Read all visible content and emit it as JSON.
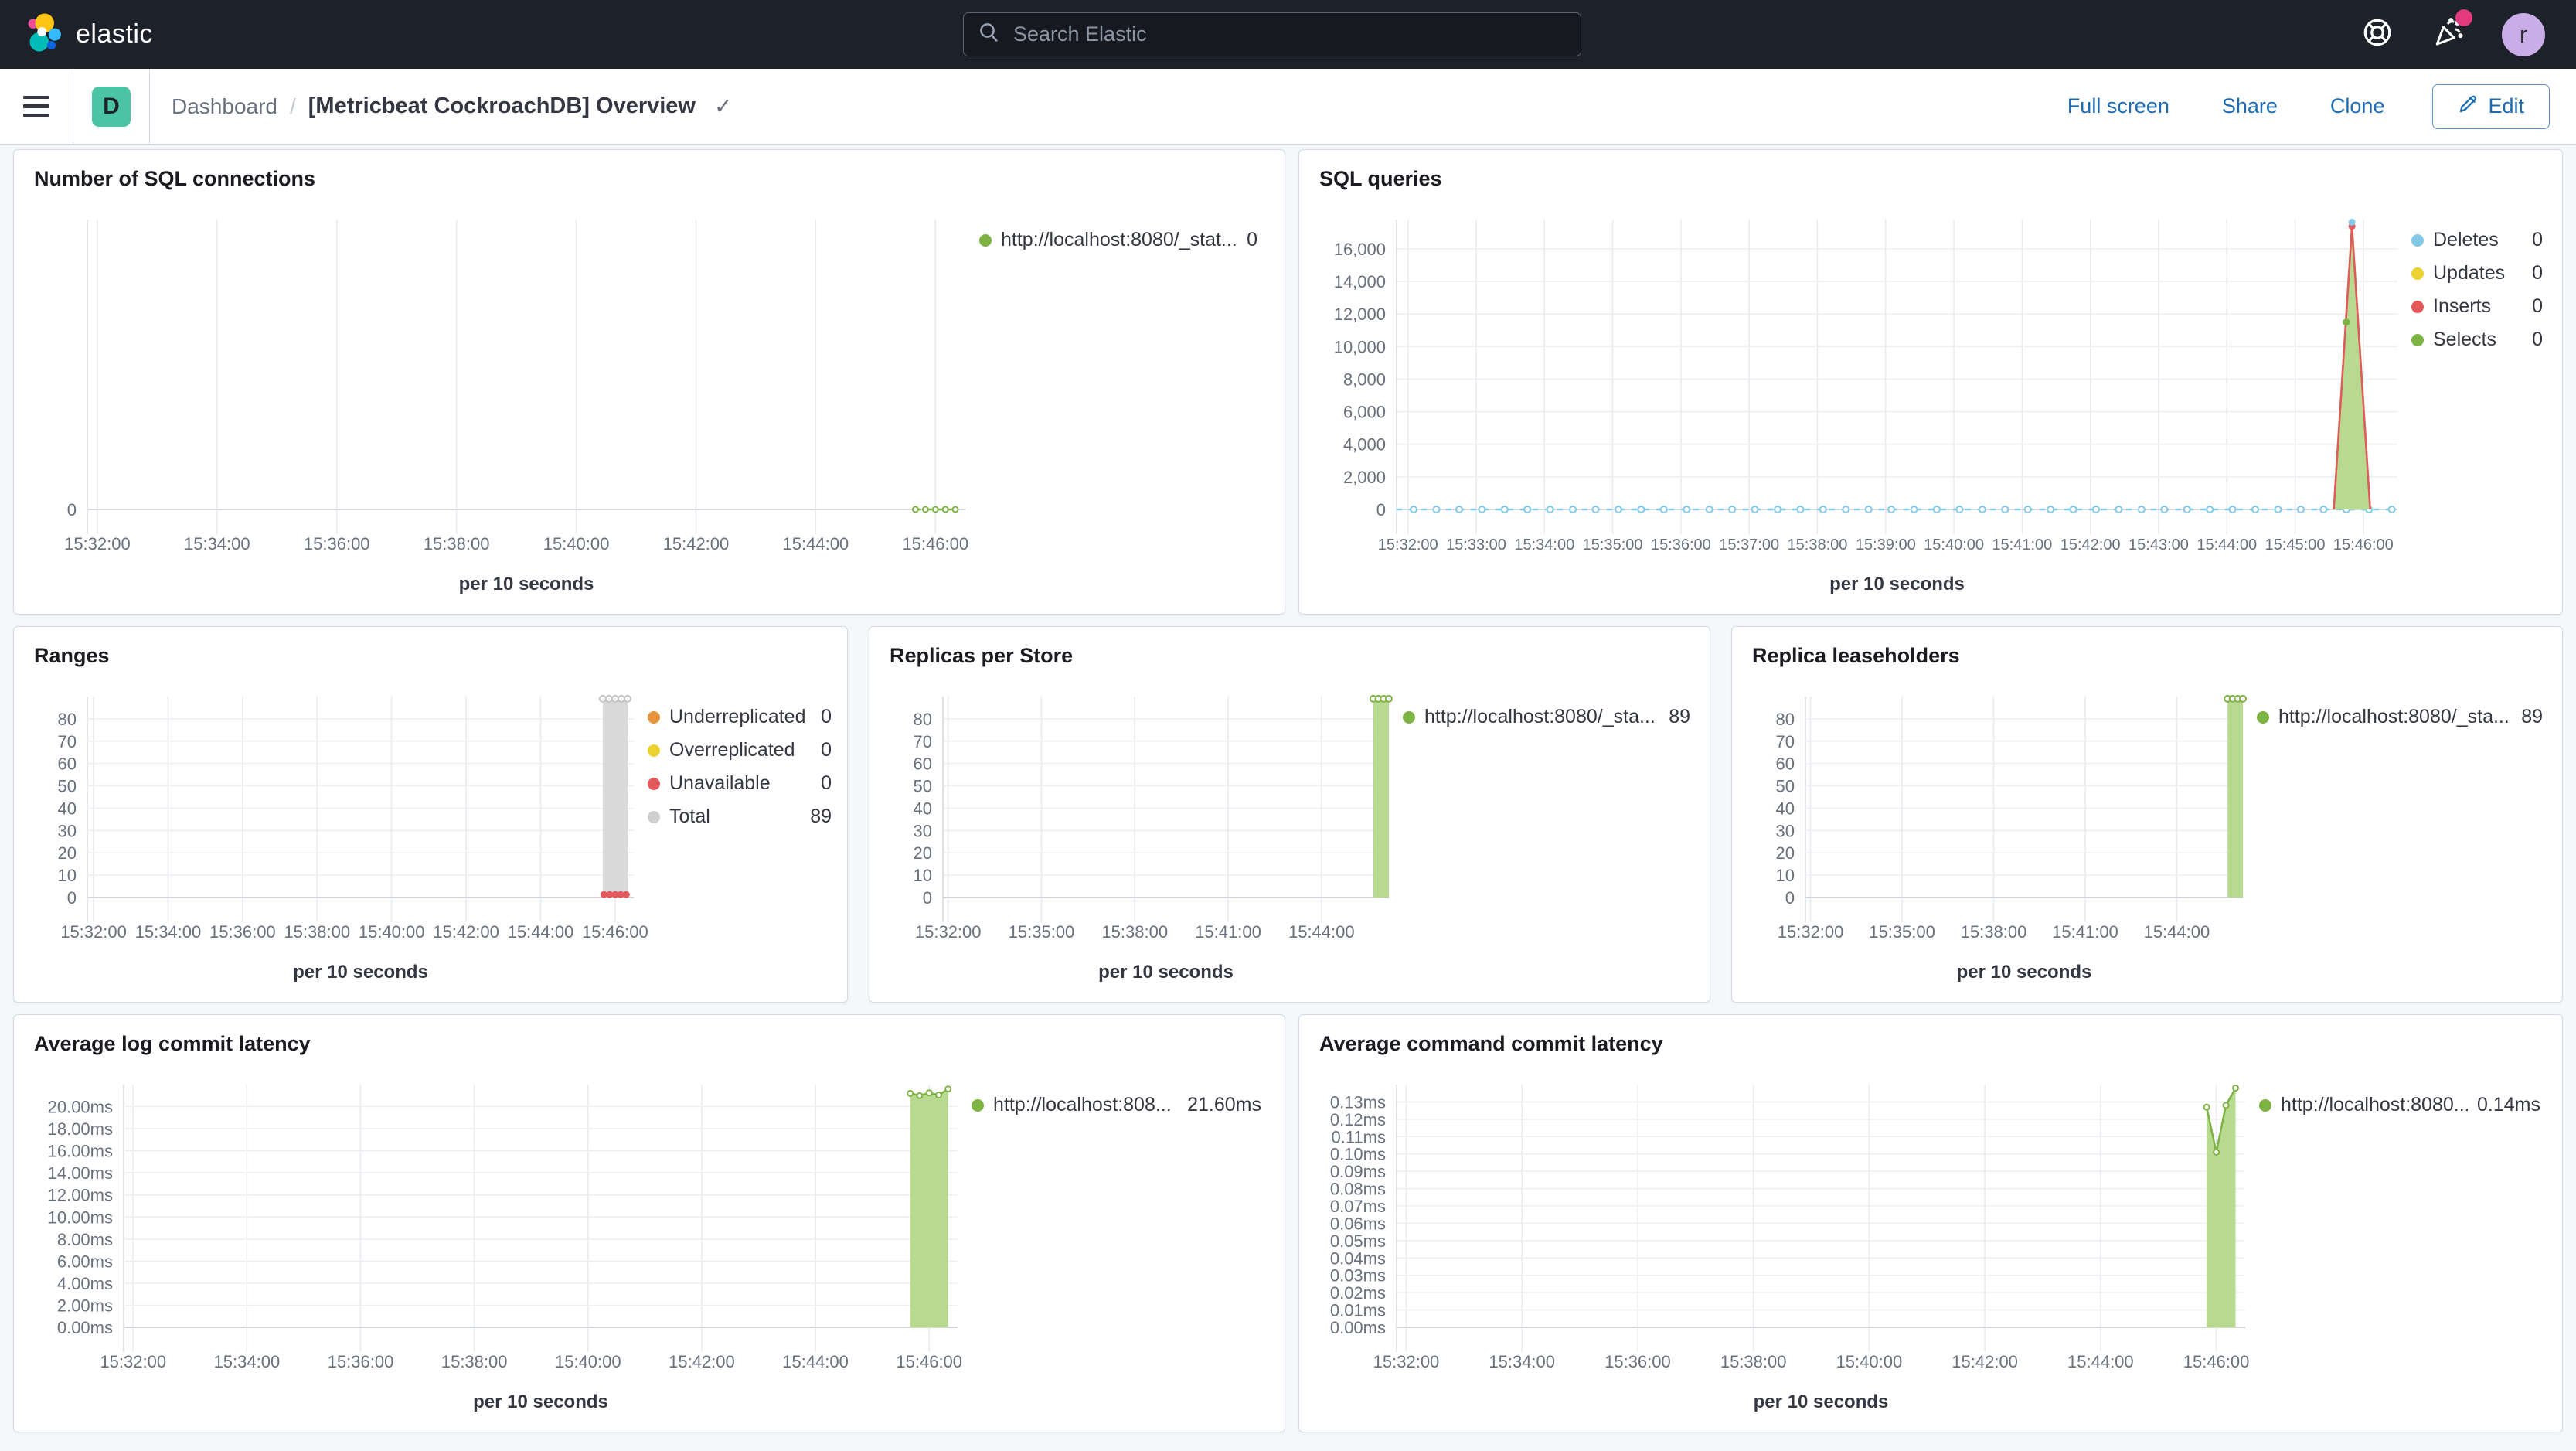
{
  "header": {
    "brand": "elastic",
    "search_placeholder": "Search Elastic",
    "avatar_initial": "r"
  },
  "nav": {
    "badge": "D",
    "breadcrumb_root": "Dashboard",
    "breadcrumb_sep": "/",
    "title": "[Metricbeat CockroachDB] Overview",
    "check_icon": "✓",
    "actions": [
      "Full screen",
      "Share",
      "Clone"
    ],
    "edit_label": "Edit"
  },
  "charts": {
    "c1": {
      "type": "line",
      "title": "Number of SQL connections",
      "x_title": "per 10 seconds",
      "x_domain": [
        "15:31:50",
        "15:46:30"
      ],
      "x_ticks": [
        "15:32:00",
        "15:34:00",
        "15:36:00",
        "15:38:00",
        "15:40:00",
        "15:42:00",
        "15:44:00",
        "15:46:00"
      ],
      "y_max": 10,
      "y_ticks": [
        {
          "v": 0,
          "t": "0"
        }
      ],
      "series": [
        {
          "type": "line",
          "color": "#7db343",
          "dash": true,
          "markers": true,
          "points": [
            [
              "15:45:40",
              0
            ],
            [
              "15:45:50",
              0
            ],
            [
              "15:46:00",
              0
            ],
            [
              "15:46:10",
              0
            ],
            [
              "15:46:20",
              0
            ]
          ]
        }
      ],
      "legend": [
        {
          "color": "#7db343",
          "label": "http://localhost:8080/_stat...",
          "value": "0"
        }
      ]
    },
    "c2": {
      "type": "area",
      "title": "SQL queries",
      "x_title": "per 10 seconds",
      "small_ticks": true,
      "x_domain": [
        "15:31:50",
        "15:46:30"
      ],
      "x_ticks": [
        "15:32:00",
        "15:33:00",
        "15:34:00",
        "15:35:00",
        "15:36:00",
        "15:37:00",
        "15:38:00",
        "15:39:00",
        "15:40:00",
        "15:41:00",
        "15:42:00",
        "15:43:00",
        "15:44:00",
        "15:45:00",
        "15:46:00"
      ],
      "y_max": 17800,
      "y_ticks": [
        {
          "v": 0,
          "t": "0"
        },
        {
          "v": 2000,
          "t": "2,000"
        },
        {
          "v": 4000,
          "t": "4,000"
        },
        {
          "v": 6000,
          "t": "6,000"
        },
        {
          "v": 8000,
          "t": "8,000"
        },
        {
          "v": 10000,
          "t": "10,000"
        },
        {
          "v": 12000,
          "t": "12,000"
        },
        {
          "v": 14000,
          "t": "14,000"
        },
        {
          "v": 16000,
          "t": "16,000"
        }
      ],
      "series": [
        {
          "type": "dashline",
          "color": "#82c9e8",
          "v": 0
        },
        {
          "type": "area",
          "color": "#b8da90",
          "stroke": "#7db343",
          "points": [
            [
              "15:45:34",
              0
            ],
            [
              "15:45:50",
              17450
            ],
            [
              "15:46:06",
              0
            ]
          ]
        },
        {
          "type": "line",
          "color": "#e4595c",
          "points": [
            [
              "15:45:34",
              0
            ],
            [
              "15:45:50",
              17300
            ],
            [
              "15:46:06",
              0
            ]
          ]
        },
        {
          "type": "dots",
          "color": "#7db343",
          "points": [
            [
              "15:45:45",
              11500
            ]
          ]
        },
        {
          "type": "dots",
          "color": "#e4595c",
          "points": [
            [
              "15:45:50",
              17380
            ]
          ]
        },
        {
          "type": "dots",
          "color": "#82c9e8",
          "points": [
            [
              "15:45:50",
              17640
            ]
          ]
        }
      ],
      "legend": [
        {
          "color": "#82c9e8",
          "label": "Deletes",
          "value": "0"
        },
        {
          "color": "#edd22f",
          "label": "Updates",
          "value": "0"
        },
        {
          "color": "#e4595c",
          "label": "Inserts",
          "value": "0"
        },
        {
          "color": "#7db343",
          "label": "Selects",
          "value": "0"
        }
      ]
    },
    "c3": {
      "type": "bar",
      "title": "Ranges",
      "x_title": "per 10 seconds",
      "x_domain": [
        "15:31:50",
        "15:46:30"
      ],
      "x_ticks": [
        "15:32:00",
        "15:34:00",
        "15:36:00",
        "15:38:00",
        "15:40:00",
        "15:42:00",
        "15:44:00",
        "15:46:00"
      ],
      "y_max": 90,
      "y_ticks": [
        {
          "v": 0,
          "t": "0"
        },
        {
          "v": 10,
          "t": "10"
        },
        {
          "v": 20,
          "t": "20"
        },
        {
          "v": 30,
          "t": "30"
        },
        {
          "v": 40,
          "t": "40"
        },
        {
          "v": 50,
          "t": "50"
        },
        {
          "v": 60,
          "t": "60"
        },
        {
          "v": 70,
          "t": "70"
        },
        {
          "v": 80,
          "t": "80"
        }
      ],
      "series": [
        {
          "type": "band",
          "color": "#d9d9d9",
          "t0": "15:45:40",
          "t1": "15:46:20",
          "v": 89,
          "top_marker": "#c4c4c4"
        },
        {
          "type": "dots",
          "color": "#e4595c",
          "points": [
            [
              "15:45:42",
              1.3
            ],
            [
              "15:45:51",
              1.3
            ],
            [
              "15:46:00",
              1.3
            ],
            [
              "15:46:09",
              1.3
            ],
            [
              "15:46:18",
              1.3
            ]
          ]
        }
      ],
      "legend": [
        {
          "color": "#e8923c",
          "label": "Underreplicated",
          "value": "0"
        },
        {
          "color": "#edd22f",
          "label": "Overreplicated",
          "value": "0"
        },
        {
          "color": "#e4595c",
          "label": "Unavailable",
          "value": "0"
        },
        {
          "color": "#cfcfcf",
          "label": "Total",
          "value": "89"
        }
      ]
    },
    "c4": {
      "type": "bar",
      "title": "Replicas per Store",
      "x_title": "per 10 seconds",
      "x_domain": [
        "15:31:50",
        "15:46:10"
      ],
      "x_ticks": [
        "15:32:00",
        "15:35:00",
        "15:38:00",
        "15:41:00",
        "15:44:00"
      ],
      "y_max": 90,
      "y_ticks": [
        {
          "v": 0,
          "t": "0"
        },
        {
          "v": 10,
          "t": "10"
        },
        {
          "v": 20,
          "t": "20"
        },
        {
          "v": 30,
          "t": "30"
        },
        {
          "v": 40,
          "t": "40"
        },
        {
          "v": 50,
          "t": "50"
        },
        {
          "v": 60,
          "t": "60"
        },
        {
          "v": 70,
          "t": "70"
        },
        {
          "v": 80,
          "t": "80"
        }
      ],
      "series": [
        {
          "type": "band",
          "color": "#b8da90",
          "t0": "15:45:40",
          "t1": "15:46:10",
          "v": 89,
          "top_marker": "#7db343"
        }
      ],
      "legend": [
        {
          "color": "#7db343",
          "label": "http://localhost:8080/_sta...",
          "value": "89"
        }
      ]
    },
    "c5": {
      "type": "bar",
      "title": "Replica leaseholders",
      "x_title": "per 10 seconds",
      "x_domain": [
        "15:31:50",
        "15:46:10"
      ],
      "x_ticks": [
        "15:32:00",
        "15:35:00",
        "15:38:00",
        "15:41:00",
        "15:44:00"
      ],
      "y_max": 90,
      "y_ticks": [
        {
          "v": 0,
          "t": "0"
        },
        {
          "v": 10,
          "t": "10"
        },
        {
          "v": 20,
          "t": "20"
        },
        {
          "v": 30,
          "t": "30"
        },
        {
          "v": 40,
          "t": "40"
        },
        {
          "v": 50,
          "t": "50"
        },
        {
          "v": 60,
          "t": "60"
        },
        {
          "v": 70,
          "t": "70"
        },
        {
          "v": 80,
          "t": "80"
        }
      ],
      "series": [
        {
          "type": "band",
          "color": "#b8da90",
          "t0": "15:45:40",
          "t1": "15:46:10",
          "v": 89,
          "top_marker": "#7db343"
        }
      ],
      "legend": [
        {
          "color": "#7db343",
          "label": "http://localhost:8080/_sta...",
          "value": "89"
        }
      ]
    },
    "c6": {
      "type": "area",
      "title": "Average log commit latency",
      "x_title": "per 10 seconds",
      "x_domain": [
        "15:31:50",
        "15:46:30"
      ],
      "x_ticks": [
        "15:32:00",
        "15:34:00",
        "15:36:00",
        "15:38:00",
        "15:40:00",
        "15:42:00",
        "15:44:00",
        "15:46:00"
      ],
      "y_max": 22,
      "y_ticks": [
        {
          "v": 0,
          "t": "0.00ms"
        },
        {
          "v": 2,
          "t": "2.00ms"
        },
        {
          "v": 4,
          "t": "4.00ms"
        },
        {
          "v": 6,
          "t": "6.00ms"
        },
        {
          "v": 8,
          "t": "8.00ms"
        },
        {
          "v": 10,
          "t": "10.00ms"
        },
        {
          "v": 12,
          "t": "12.00ms"
        },
        {
          "v": 14,
          "t": "14.00ms"
        },
        {
          "v": 16,
          "t": "16.00ms"
        },
        {
          "v": 18,
          "t": "18.00ms"
        },
        {
          "v": 20,
          "t": "20.00ms"
        }
      ],
      "series": [
        {
          "type": "area",
          "color": "#b8da90",
          "stroke": "#7db343",
          "markers": true,
          "points": [
            [
              "15:45:40",
              21.2
            ],
            [
              "15:45:50",
              21.0
            ],
            [
              "15:46:00",
              21.25
            ],
            [
              "15:46:10",
              21.05
            ],
            [
              "15:46:20",
              21.6
            ]
          ]
        }
      ],
      "legend": [
        {
          "color": "#7db343",
          "label": "http://localhost:808...",
          "value": "21.60ms"
        }
      ]
    },
    "c7": {
      "type": "area",
      "title": "Average command commit latency",
      "x_title": "per 10 seconds",
      "x_domain": [
        "15:31:50",
        "15:46:30"
      ],
      "x_ticks": [
        "15:32:00",
        "15:34:00",
        "15:36:00",
        "15:38:00",
        "15:40:00",
        "15:42:00",
        "15:44:00",
        "15:46:00"
      ],
      "y_max": 0.14,
      "y_ticks": [
        {
          "v": 0,
          "t": "0.00ms"
        },
        {
          "v": 0.01,
          "t": "0.01ms"
        },
        {
          "v": 0.02,
          "t": "0.02ms"
        },
        {
          "v": 0.03,
          "t": "0.03ms"
        },
        {
          "v": 0.04,
          "t": "0.04ms"
        },
        {
          "v": 0.05,
          "t": "0.05ms"
        },
        {
          "v": 0.06,
          "t": "0.06ms"
        },
        {
          "v": 0.07,
          "t": "0.07ms"
        },
        {
          "v": 0.08,
          "t": "0.08ms"
        },
        {
          "v": 0.09,
          "t": "0.09ms"
        },
        {
          "v": 0.1,
          "t": "0.10ms"
        },
        {
          "v": 0.11,
          "t": "0.11ms"
        },
        {
          "v": 0.12,
          "t": "0.12ms"
        },
        {
          "v": 0.13,
          "t": "0.13ms"
        }
      ],
      "series": [
        {
          "type": "area",
          "color": "#b8da90",
          "stroke": "#7db343",
          "markers": true,
          "points": [
            [
              "15:45:50",
              0.127
            ],
            [
              "15:46:00",
              0.101
            ],
            [
              "15:46:10",
              0.128
            ],
            [
              "15:46:20",
              0.138
            ]
          ]
        }
      ],
      "legend": [
        {
          "color": "#7db343",
          "label": "http://localhost:8080...",
          "value": "0.14ms"
        }
      ]
    }
  }
}
